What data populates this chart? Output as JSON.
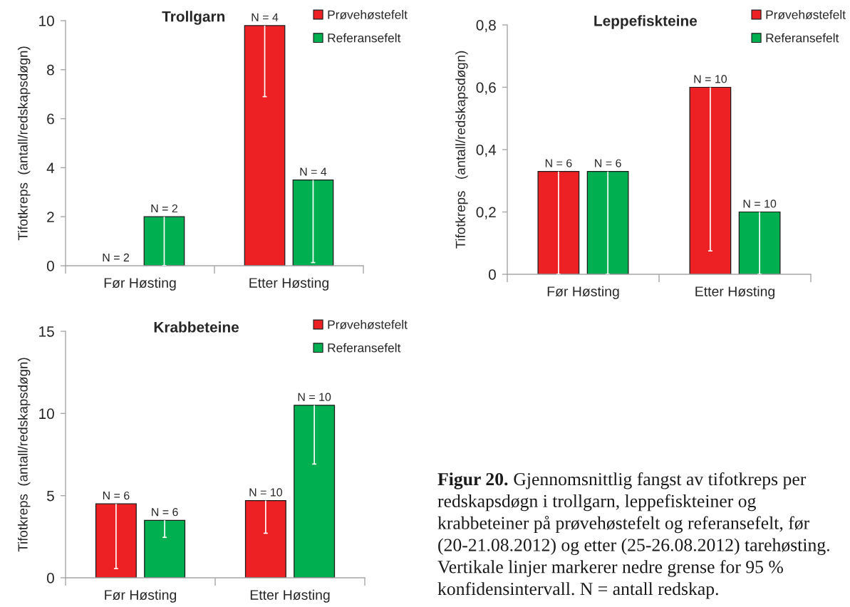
{
  "chart_data": [
    {
      "type": "bar",
      "title": "Trollgarn",
      "ylabel": "Tifotkreps  (antall/redskapsdøgn)",
      "categories": [
        "Før Høsting",
        "Etter Høsting"
      ],
      "series": [
        {
          "name": "Prøvehøstefelt",
          "color": "#ed2024",
          "values": [
            0,
            9.8
          ],
          "errors": [
            null,
            [
              6.9,
              9.8
            ]
          ]
        },
        {
          "name": "Referansefelt",
          "color": "#00b050",
          "values": [
            2,
            3.5
          ],
          "errors": [
            [
              0,
              2
            ],
            [
              0.13,
              3.5
            ]
          ]
        }
      ],
      "annotations": [
        "N = 2",
        "N = 2",
        "N = 4",
        "N = 4"
      ],
      "ylim": [
        0,
        10
      ],
      "yticks": [
        0,
        2,
        4,
        6,
        8,
        10
      ],
      "legend": "top right"
    },
    {
      "type": "bar",
      "title": "Leppefiskteine",
      "ylabel": "Tifotkreps   (antall/redskapsdøgn)",
      "categories": [
        "Før Høsting",
        "Etter Høsting"
      ],
      "series": [
        {
          "name": "Prøvehøstefelt",
          "color": "#ed2024",
          "values": [
            0.33,
            0.6
          ],
          "errors": [
            [
              0,
              0.33
            ],
            [
              0.075,
              0.6
            ]
          ]
        },
        {
          "name": "Referansefelt",
          "color": "#00b050",
          "values": [
            0.33,
            0.2
          ],
          "errors": [
            [
              0,
              0.33
            ],
            [
              0,
              0.2
            ]
          ]
        }
      ],
      "annotations": [
        "N = 6",
        "N = 6",
        "N = 10",
        "N = 10"
      ],
      "ylim": [
        0,
        0.8
      ],
      "yticks": [
        0,
        {
          "value": 0.2,
          "label": "0,2"
        },
        {
          "value": 0.4,
          "label": "0,4"
        },
        {
          "value": 0.6,
          "label": "0,6"
        },
        {
          "value": 0.8,
          "label": "0,8"
        }
      ],
      "legend": "top right"
    },
    {
      "type": "bar",
      "title": "Krabbeteine",
      "ylabel": "Tifotkreps  (antall/redskapsdøgn)",
      "categories": [
        "Før Høsting",
        "Etter Høsting"
      ],
      "series": [
        {
          "name": "Prøvehøstefelt",
          "color": "#ed2024",
          "values": [
            4.5,
            4.7
          ],
          "errors": [
            [
              0.56,
              4.5
            ],
            [
              2.71,
              4.7
            ]
          ]
        },
        {
          "name": "Referansefelt",
          "color": "#00b050",
          "values": [
            3.5,
            10.5
          ],
          "errors": [
            [
              2.46,
              3.5
            ],
            [
              6.92,
              10.5
            ]
          ]
        }
      ],
      "annotations": [
        "N = 6",
        "N = 6",
        "N = 10",
        "N = 10"
      ],
      "ylim": [
        0,
        15
      ],
      "yticks": [
        0,
        5,
        10,
        15
      ],
      "legend": "top right"
    },
    {
      "type": "other",
      "annotations": [
        "Figur 20. Gjennomsnittlig fangst av tifotkreps per redskapsdøgn i trollgarn, leppefiskteiner og krabbeteiner på prøvehøstefelt og referansefelt, før (20-21.08.2012) og etter (25-26.08.2012) tarehøsting. Vertikale linjer markerer nedre grense for 95 % konfidensintervall. N = antall redskap."
      ]
    }
  ]
}
